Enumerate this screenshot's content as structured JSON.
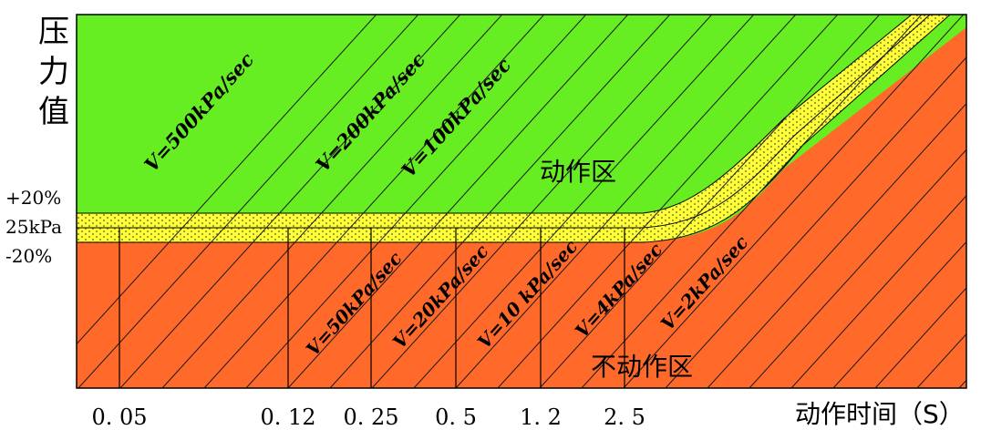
{
  "chart_data": {
    "type": "area",
    "y_axis_label": "压力值",
    "x_axis_label": "动作时间（S）",
    "setpoint_label": "25kPa",
    "upper_tolerance_label": "+20%",
    "lower_tolerance_label": "-20%",
    "x_ticks": [
      "0. 05",
      "0. 12",
      "0. 25",
      "0. 5",
      "1. 2",
      "2. 5"
    ],
    "x_tick_values": [
      0.05,
      0.12,
      0.25,
      0.5,
      1.2,
      2.5
    ],
    "regions": {
      "action": "动作区",
      "no_action": "不动作区"
    },
    "rate_lines_upper": [
      "V=500kPa/sec",
      "V=200kPa/sec",
      "V=100kPa/sec"
    ],
    "rate_lines_lower": [
      "V=50kPa/sec",
      "V=20kPa/sec",
      "V=10 kPa/sec",
      "V=4kPa/sec",
      "V=2kPa/sec"
    ],
    "colors": {
      "action_zone": "#66ee22",
      "no_action_zone": "#ff6a2a",
      "tolerance_band": "#ffff33",
      "lines": "#000000"
    }
  }
}
